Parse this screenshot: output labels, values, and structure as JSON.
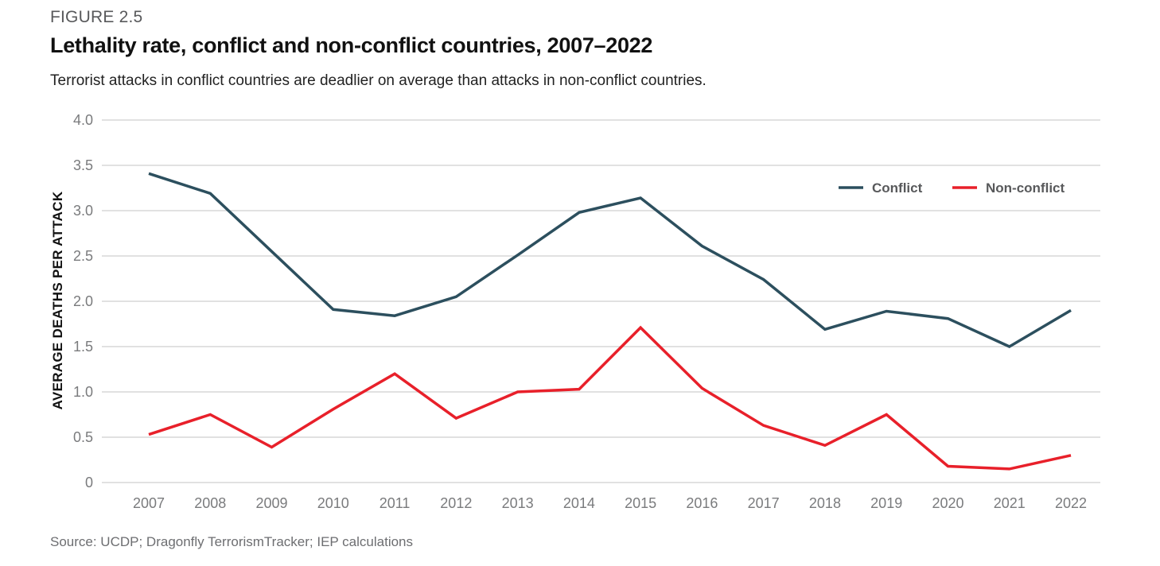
{
  "figure_label": "FIGURE 2.5",
  "title": "Lethality rate, conflict and non-conflict countries, 2007–2022",
  "subtitle": "Terrorist attacks in conflict countries are deadlier on average than attacks in non-conflict countries.",
  "source": "Source: UCDP; Dragonfly TerrorismTracker; IEP calculations",
  "chart_data": {
    "type": "line",
    "title": "Lethality rate, conflict and non-conflict countries, 2007–2022",
    "xlabel": "",
    "ylabel": "AVERAGE DEATHS PER ATTACK",
    "ylim": [
      0,
      4.0
    ],
    "yticks": [
      "0",
      "0.5",
      "1.0",
      "1.5",
      "2.0",
      "2.5",
      "3.0",
      "3.5",
      "4.0"
    ],
    "ytick_values": [
      0,
      0.5,
      1.0,
      1.5,
      2.0,
      2.5,
      3.0,
      3.5,
      4.0
    ],
    "x": [
      "2007",
      "2008",
      "2009",
      "2010",
      "2011",
      "2012",
      "2013",
      "2014",
      "2015",
      "2016",
      "2017",
      "2018",
      "2019",
      "2020",
      "2021",
      "2022"
    ],
    "grid": true,
    "legend_position": "top-right",
    "series": [
      {
        "name": "Conflict",
        "color": "#2c4f5e",
        "values": [
          3.41,
          3.19,
          2.55,
          1.91,
          1.84,
          2.05,
          2.51,
          2.98,
          3.14,
          2.61,
          2.24,
          1.69,
          1.89,
          1.81,
          1.5,
          1.9
        ]
      },
      {
        "name": "Non-conflict",
        "color": "#e8202a",
        "values": [
          0.53,
          0.75,
          0.39,
          0.81,
          1.2,
          0.71,
          1.0,
          1.03,
          1.71,
          1.04,
          0.63,
          0.41,
          0.75,
          0.18,
          0.15,
          0.3
        ]
      }
    ]
  }
}
